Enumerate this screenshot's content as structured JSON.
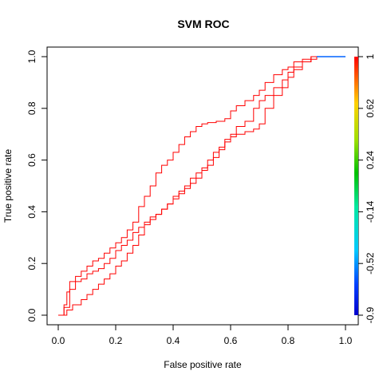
{
  "chart_data": {
    "type": "line",
    "title": "SVM  ROC",
    "xlabel": "False positive rate",
    "ylabel": "True positive rate",
    "xlim": [
      0,
      1
    ],
    "ylim": [
      0,
      1
    ],
    "xticks": [
      "0.0",
      "0.2",
      "0.4",
      "0.6",
      "0.8",
      "1.0"
    ],
    "yticks": [
      "0.0",
      "0.2",
      "0.4",
      "0.6",
      "0.8",
      "1.0"
    ],
    "grid": false,
    "legend": "none",
    "line_color": "#ff0000",
    "series": [
      {
        "x": [
          0,
          0.02,
          0.03,
          0.04,
          0.06,
          0.08,
          0.1,
          0.12,
          0.14,
          0.16,
          0.18,
          0.2,
          0.22,
          0.24,
          0.26,
          0.28,
          0.3,
          0.32,
          0.34,
          0.36,
          0.38,
          0.4,
          0.42,
          0.44,
          0.46,
          0.48,
          0.5,
          0.52,
          0.55,
          0.58,
          0.6,
          0.62,
          0.65,
          0.68,
          0.7,
          0.72,
          0.75,
          0.78,
          0.8,
          0.82,
          0.85,
          0.88,
          0.9,
          0.95,
          1.0
        ],
        "y": [
          0,
          0.04,
          0.09,
          0.13,
          0.15,
          0.17,
          0.19,
          0.21,
          0.22,
          0.24,
          0.26,
          0.28,
          0.3,
          0.33,
          0.36,
          0.42,
          0.46,
          0.5,
          0.55,
          0.58,
          0.6,
          0.63,
          0.66,
          0.69,
          0.71,
          0.73,
          0.74,
          0.745,
          0.75,
          0.76,
          0.79,
          0.81,
          0.83,
          0.85,
          0.87,
          0.9,
          0.93,
          0.95,
          0.96,
          0.98,
          0.99,
          1.0,
          1.0,
          1.0,
          1.0
        ]
      },
      {
        "x": [
          0,
          0.02,
          0.04,
          0.06,
          0.08,
          0.1,
          0.12,
          0.14,
          0.16,
          0.18,
          0.2,
          0.22,
          0.24,
          0.26,
          0.28,
          0.3,
          0.32,
          0.34,
          0.36,
          0.38,
          0.4,
          0.42,
          0.44,
          0.46,
          0.48,
          0.5,
          0.52,
          0.54,
          0.56,
          0.58,
          0.6,
          0.62,
          0.65,
          0.68,
          0.7,
          0.72,
          0.75,
          0.78,
          0.8,
          0.82,
          0.85,
          0.88,
          0.9,
          0.95,
          1.0
        ],
        "y": [
          0,
          0.03,
          0.1,
          0.13,
          0.14,
          0.16,
          0.17,
          0.18,
          0.2,
          0.22,
          0.25,
          0.27,
          0.29,
          0.32,
          0.34,
          0.36,
          0.38,
          0.39,
          0.41,
          0.43,
          0.46,
          0.48,
          0.49,
          0.51,
          0.53,
          0.56,
          0.58,
          0.61,
          0.64,
          0.67,
          0.7,
          0.73,
          0.75,
          0.8,
          0.83,
          0.85,
          0.88,
          0.91,
          0.94,
          0.96,
          0.98,
          0.99,
          1.0,
          1.0,
          1.0
        ]
      },
      {
        "x": [
          0,
          0.03,
          0.05,
          0.08,
          0.1,
          0.12,
          0.14,
          0.16,
          0.18,
          0.2,
          0.22,
          0.24,
          0.26,
          0.28,
          0.3,
          0.32,
          0.34,
          0.36,
          0.38,
          0.4,
          0.42,
          0.44,
          0.46,
          0.48,
          0.5,
          0.52,
          0.54,
          0.56,
          0.58,
          0.6,
          0.62,
          0.65,
          0.68,
          0.7,
          0.72,
          0.75,
          0.78,
          0.8,
          0.82,
          0.85,
          0.88,
          0.9,
          0.95,
          1.0
        ],
        "y": [
          0,
          0.02,
          0.04,
          0.06,
          0.08,
          0.1,
          0.12,
          0.14,
          0.16,
          0.19,
          0.21,
          0.24,
          0.27,
          0.31,
          0.35,
          0.37,
          0.39,
          0.41,
          0.43,
          0.45,
          0.47,
          0.5,
          0.53,
          0.55,
          0.57,
          0.6,
          0.63,
          0.65,
          0.68,
          0.69,
          0.7,
          0.71,
          0.72,
          0.74,
          0.8,
          0.85,
          0.88,
          0.92,
          0.95,
          0.98,
          1.0,
          1.0,
          1.0,
          1.0
        ]
      }
    ],
    "tail_segment_color": "#0064ff",
    "colorbar": {
      "ticks": [
        "1",
        "0.62",
        "0.24",
        "-0.14",
        "-0.52",
        "-0.9"
      ],
      "values": [
        1,
        0.62,
        0.24,
        -0.14,
        -0.52,
        -0.9
      ],
      "range": [
        -0.9,
        1
      ]
    }
  }
}
